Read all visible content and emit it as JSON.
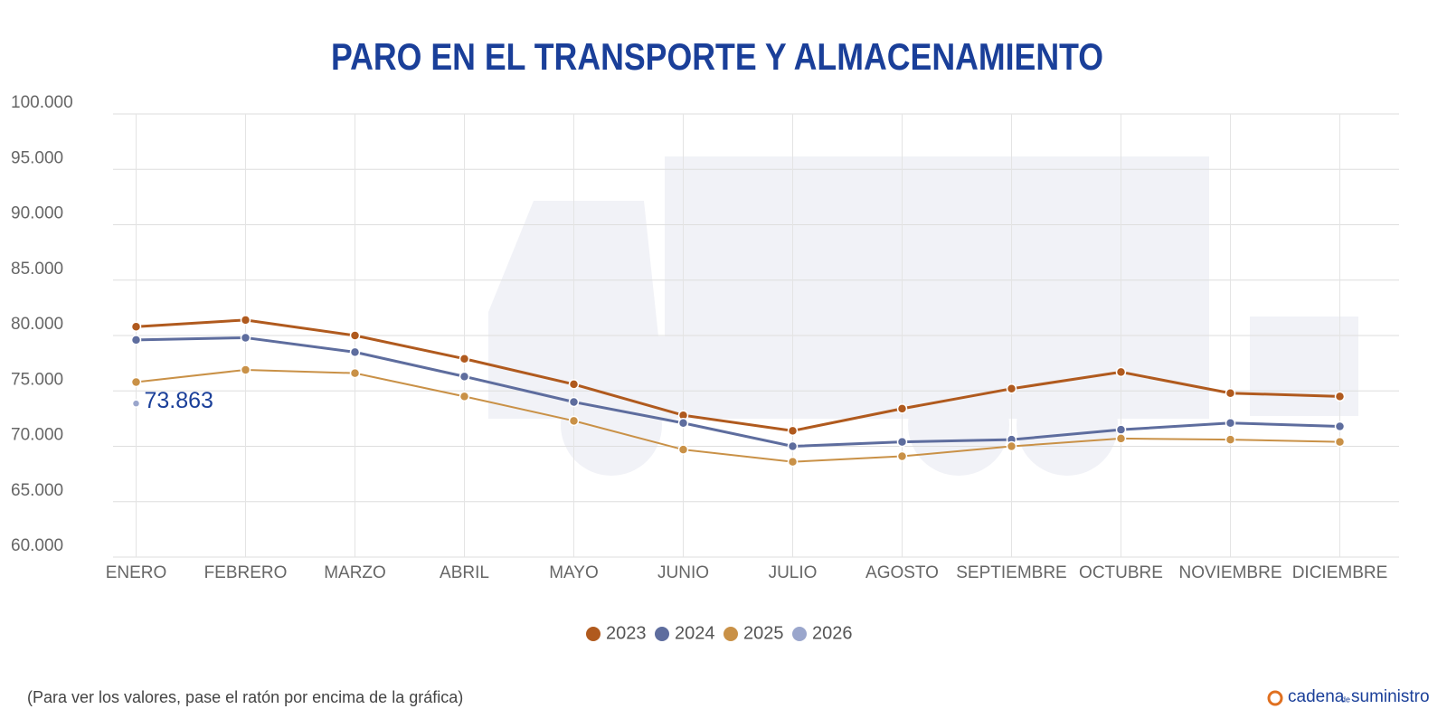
{
  "chart_data": {
    "type": "line",
    "title": "PARO EN EL TRANSPORTE Y ALMACENAMIENTO",
    "categories": [
      "ENERO",
      "FEBRERO",
      "MARZO",
      "ABRIL",
      "MAYO",
      "JUNIO",
      "JULIO",
      "AGOSTO",
      "SEPTIEMBRE",
      "OCTUBRE",
      "NOVIEMBRE",
      "DICIEMBRE"
    ],
    "series": [
      {
        "name": "2023",
        "color": "#b05a1e",
        "values": [
          80800,
          81400,
          80000,
          77900,
          75600,
          72800,
          71400,
          73400,
          75200,
          76700,
          74800,
          74500
        ]
      },
      {
        "name": "2024",
        "color": "#5e6d9e",
        "values": [
          79600,
          79800,
          78500,
          76300,
          74000,
          72100,
          70000,
          70400,
          70600,
          71500,
          72100,
          71800
        ]
      },
      {
        "name": "2025",
        "color": "#c99147",
        "values": [
          75800,
          76900,
          76600,
          74500,
          72300,
          69700,
          68600,
          69100,
          70000,
          70700,
          70600,
          70400
        ]
      },
      {
        "name": "2026",
        "color": "#9aa6cc",
        "values": [
          73863,
          null,
          null,
          null,
          null,
          null,
          null,
          null,
          null,
          null,
          null,
          null
        ],
        "value_labels": [
          "73.863",
          null,
          null,
          null,
          null,
          null,
          null,
          null,
          null,
          null,
          null,
          null
        ]
      }
    ],
    "ylim": [
      60000,
      100000
    ],
    "yticks": [
      {
        "value": 60000,
        "label": "60.000"
      },
      {
        "value": 65000,
        "label": "65.000"
      },
      {
        "value": 70000,
        "label": "70.000"
      },
      {
        "value": 75000,
        "label": "75.000"
      },
      {
        "value": 80000,
        "label": "80.000"
      },
      {
        "value": 85000,
        "label": "85.000"
      },
      {
        "value": 90000,
        "label": "90.000"
      },
      {
        "value": 95000,
        "label": "95.000"
      },
      {
        "value": 100000,
        "label": "100.000"
      }
    ],
    "grid": true
  },
  "footer": {
    "note": "(Para ver los valores, pase el ratón por encima de la gráfica)",
    "brand_1": "cadena",
    "brand_2": "de",
    "brand_3": "suministro"
  }
}
